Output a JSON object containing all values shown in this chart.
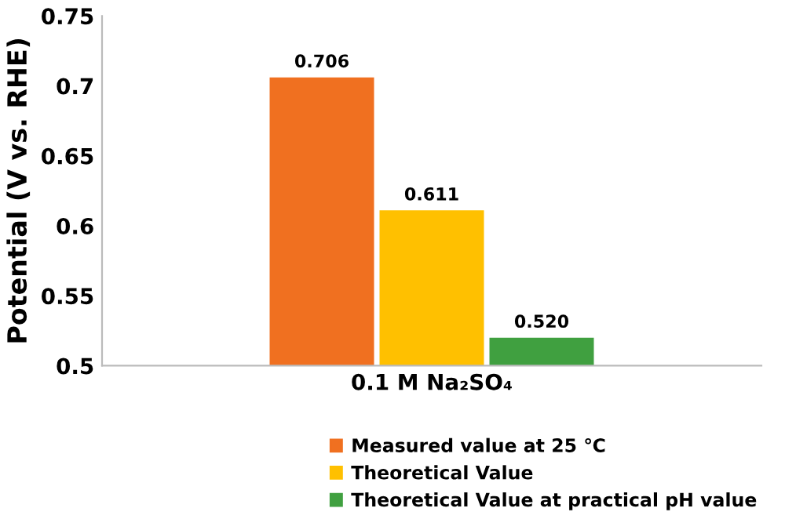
{
  "chart_data": {
    "type": "bar",
    "ylabel": "Potential (V vs. RHE)",
    "categories": [
      "0.1 M Na₂SO₄"
    ],
    "series": [
      {
        "name": "Measured value at 25 ℃",
        "color": "#f07020",
        "values": [
          0.706
        ]
      },
      {
        "name": "Theoretical Value",
        "color": "#ffc000",
        "values": [
          0.611
        ]
      },
      {
        "name": "Theoretical Value at practical pH value",
        "color": "#40a040",
        "values": [
          0.52
        ],
        "value_labels": [
          "0.520"
        ]
      }
    ],
    "ylim": [
      0.5,
      0.75
    ],
    "yticks": [
      0.5,
      0.55,
      0.6,
      0.65,
      0.7,
      0.75
    ],
    "data_labels": true,
    "grid": false,
    "legend": "bottom"
  }
}
